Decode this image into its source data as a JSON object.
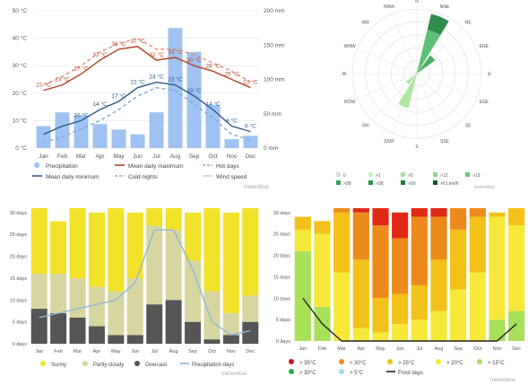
{
  "charts": {
    "climate": {
      "type": "bar+line",
      "categories": [
        "Jan",
        "Feb",
        "Mar",
        "Apr",
        "May",
        "Jun",
        "Jul",
        "Aug",
        "Sep",
        "Oct",
        "Nov",
        "Dec"
      ],
      "y_left_ticks": [
        "0 °C",
        "10 °C",
        "20 °C",
        "30 °C",
        "40 °C",
        "50 °C"
      ],
      "y_right_ticks": [
        "0 mm",
        "50 mm",
        "100 mm",
        "150 mm",
        "200 mm"
      ],
      "ylim_left": [
        0,
        50
      ],
      "ylim_right": [
        0,
        200
      ],
      "series": [
        {
          "name": "Precipitation",
          "kind": "bar",
          "color": "#9fc2f2",
          "values": [
            32,
            52,
            48,
            35,
            27,
            20,
            52,
            175,
            140,
            63,
            13,
            18
          ]
        },
        {
          "name": "Mean daily maximum",
          "kind": "line",
          "color": "#b34524",
          "values": [
            21,
            23,
            27,
            32,
            36,
            37,
            32,
            33,
            30,
            28,
            25,
            22
          ],
          "labels": [
            "21 °C",
            "23 °C",
            "27 °C",
            "32 °C",
            "36 °C",
            "37 °C",
            "32 °C",
            "33 °C",
            "30 °C",
            "28 °C",
            "25 °C",
            "22 °C"
          ]
        },
        {
          "name": "Hot days",
          "kind": "line",
          "style": "dashed",
          "color": "#e08972",
          "values": [
            23,
            26,
            30,
            35,
            38,
            40,
            36,
            36,
            34,
            31,
            28,
            24
          ]
        },
        {
          "name": "Mean daily minimum",
          "kind": "line",
          "color": "#2f5a8a",
          "values": [
            5,
            8,
            10,
            14,
            17,
            22,
            24,
            23,
            19,
            14,
            8,
            6
          ],
          "labels": [
            "",
            "",
            "10 °C",
            "14 °C",
            "17 °C",
            "22 °C",
            "24 °C",
            "23 °C",
            "19 °C",
            "14 °C",
            "8 °C",
            "6 °C"
          ]
        },
        {
          "name": "Cold nights",
          "kind": "line",
          "style": "dashed",
          "color": "#7fa8d6",
          "values": [
            2,
            4,
            7,
            10,
            14,
            19,
            22,
            21,
            16,
            11,
            5,
            3
          ]
        },
        {
          "name": "Wind speed",
          "kind": "line",
          "color": "#cfcfcf",
          "values": []
        }
      ],
      "legend": [
        {
          "label": "Precipitation",
          "swatch": "dot",
          "color": "#9fc2f2"
        },
        {
          "label": "Mean daily maximum",
          "swatch": "line",
          "color": "#b34524"
        },
        {
          "label": "Hot days",
          "swatch": "dash",
          "color": "#e08972"
        },
        {
          "label": "Mean daily minimum",
          "swatch": "line",
          "color": "#2f5a8a"
        },
        {
          "label": "Cold nights",
          "swatch": "dash",
          "color": "#7fa8d6"
        },
        {
          "label": "Wind speed",
          "swatch": "line",
          "color": "#cfcfcf"
        }
      ],
      "watermark": "meteoblue"
    },
    "wind": {
      "type": "polar",
      "directions": [
        "N",
        "NNE",
        "NE",
        "ENE",
        "E",
        "ESE",
        "SE",
        "SSE",
        "S",
        "SSW",
        "SW",
        "WSW",
        "W",
        "WNW",
        "NW",
        "NNW"
      ],
      "rings": 5,
      "bars": [
        {
          "dir": "NNE",
          "value": 0.95,
          "color": "#1b7f3a"
        },
        {
          "dir": "NE",
          "value": 0.35,
          "color": "#3aa552"
        },
        {
          "dir": "NNE",
          "value": 0.7,
          "color": "#62c77a"
        },
        {
          "dir": "SSW",
          "value": 0.55,
          "color": "#a6e39a"
        },
        {
          "dir": "SW",
          "value": 0.2,
          "color": "#a6e39a"
        }
      ],
      "legend": [
        {
          "label": "0",
          "color": "#dddddd"
        },
        {
          "label": ">1",
          "color": "#c8f0c0"
        },
        {
          "label": ">5",
          "color": "#a6e39a"
        },
        {
          "label": ">12",
          "color": "#8fd98a"
        },
        {
          "label": ">19",
          "color": "#62c77a"
        },
        {
          "label": ">28",
          "color": "#3aa552"
        },
        {
          "label": ">38",
          "color": "#2f8f45"
        },
        {
          "label": ">50",
          "color": "#1b7f3a"
        },
        {
          "label": ">61 km/h",
          "color": "#0f5a28"
        }
      ],
      "watermark": "meteoblue"
    },
    "cloud": {
      "type": "stacked-bar",
      "categories": [
        "Jan",
        "Feb",
        "Mar",
        "Apr",
        "May",
        "Jun",
        "Jul",
        "Aug",
        "Sep",
        "Oct",
        "Nov",
        "Dec"
      ],
      "y_ticks": [
        "0 days",
        "5 days",
        "10 days",
        "15 days",
        "20 days",
        "25 days",
        "30 days"
      ],
      "ylim": [
        0,
        31
      ],
      "series": [
        {
          "name": "Overcast",
          "color": "#555555",
          "values": [
            8,
            7,
            6,
            4,
            2,
            2,
            9,
            10,
            5,
            1,
            2,
            5
          ]
        },
        {
          "name": "Partly cloudy",
          "color": "#d8d6a0",
          "values": [
            8,
            9,
            9,
            9,
            10,
            13,
            18,
            16,
            14,
            11,
            5,
            6
          ]
        },
        {
          "name": "Sunny",
          "color": "#f2e22a",
          "values": [
            15,
            12,
            16,
            17,
            19,
            15,
            4,
            5,
            11,
            19,
            23,
            20
          ]
        }
      ],
      "precip_days": {
        "name": "Precipitation days",
        "color": "#8fb6d6",
        "values": [
          6,
          7,
          8,
          9,
          10,
          14,
          26,
          26,
          17,
          5,
          2,
          3
        ]
      },
      "legend": [
        {
          "label": "Sunny",
          "color": "#f2e22a"
        },
        {
          "label": "Partly cloudy",
          "color": "#d8d6a0"
        },
        {
          "label": "Overcast",
          "color": "#555555"
        },
        {
          "label": "Precipitation days",
          "color": "#8fb6d6",
          "swatch": "line"
        }
      ],
      "watermark": "meteoblue"
    },
    "temp": {
      "type": "stacked-bar",
      "categories": [
        "Jan",
        "Feb",
        "Mar",
        "Apr",
        "May",
        "Jun",
        "Jul",
        "Aug",
        "Sep",
        "Oct",
        "Nov",
        "Dec"
      ],
      "y_ticks": [
        "0 days",
        "5 days",
        "10 days",
        "15 days",
        "20 days",
        "25 days",
        "30 days"
      ],
      "ylim": [
        0,
        31
      ],
      "series": [
        {
          "name": "> 15°C",
          "color": "#a9e05a",
          "values": [
            21,
            8,
            0,
            0,
            0,
            0,
            0,
            0,
            0,
            0,
            5,
            7
          ]
        },
        {
          "name": "> 20°C",
          "color": "#f7e93a",
          "values": [
            5,
            17,
            16,
            3,
            2,
            4,
            5,
            7,
            12,
            16,
            24,
            20
          ]
        },
        {
          "name": "> 25°C",
          "color": "#f2c21a",
          "values": [
            3,
            3,
            14,
            16,
            8,
            7,
            8,
            12,
            14,
            13,
            1,
            4
          ]
        },
        {
          "name": "> 30°C",
          "color": "#ed8a1c",
          "values": [
            0,
            0,
            1,
            11,
            17,
            13,
            16,
            10,
            5,
            2,
            0,
            0
          ]
        },
        {
          "name": "> 35°C",
          "color": "#e02a15",
          "values": [
            0,
            0,
            0,
            1,
            4,
            6,
            2,
            2,
            0,
            0,
            0,
            0
          ]
        }
      ],
      "frost_days": {
        "name": "Frost days",
        "color": "#222222",
        "values": [
          10,
          4,
          0,
          0,
          0,
          0,
          0,
          0,
          0,
          0,
          0,
          4
        ]
      },
      "legend": [
        {
          "label": "> 35°C",
          "color": "#c8161c"
        },
        {
          "label": "> 30°C",
          "color": "#ed8a1c"
        },
        {
          "label": "> 25°C",
          "color": "#f2c21a"
        },
        {
          "label": "> 20°C",
          "color": "#f7e93a"
        },
        {
          "label": "> 15°C",
          "color": "#a9e05a"
        },
        {
          "label": "> 30°C",
          "color": "#2aa84a"
        },
        {
          "label": "> 5°C",
          "color": "#9fd8f0"
        },
        {
          "label": "Frost days",
          "color": "#222222",
          "swatch": "line"
        }
      ],
      "watermark": "meteoblue"
    }
  }
}
